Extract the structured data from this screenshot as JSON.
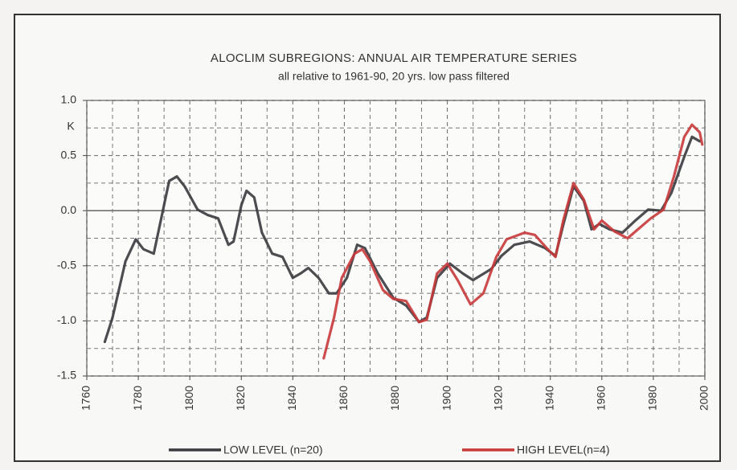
{
  "chart_data": {
    "type": "line",
    "title": "ALOCLIM SUBREGIONS: ANNUAL AIR TEMPERATURE SERIES",
    "subtitle": "all relative to 1961-90, 20 yrs. low pass filtered",
    "y_unit_label": "K",
    "xlim": [
      1760,
      2000
    ],
    "xticks": [
      1760,
      1780,
      1800,
      1820,
      1840,
      1860,
      1880,
      1900,
      1920,
      1940,
      1960,
      1980,
      2000
    ],
    "ylim": [
      -1.5,
      1.0
    ],
    "yticks": [
      {
        "value": -1.5,
        "label": "-1.5"
      },
      {
        "value": -1,
        "label": "-1.0"
      },
      {
        "value": -0.5,
        "label": "-0.5"
      },
      {
        "value": 0,
        "label": "0.0"
      },
      {
        "value": 0.5,
        "label": "0.5"
      },
      {
        "value": 1,
        "label": "1.0"
      }
    ],
    "grid": true,
    "series": [
      {
        "name": "LOW LEVEL (n=20)",
        "color": "#3a3a3e",
        "x": [
          1767,
          1770,
          1775,
          1779,
          1782,
          1786,
          1789,
          1792,
          1795,
          1798,
          1803,
          1807,
          1811,
          1815,
          1817,
          1820,
          1822,
          1825,
          1828,
          1832,
          1836,
          1840,
          1843,
          1846,
          1850,
          1854,
          1857,
          1861,
          1865,
          1868,
          1873,
          1879,
          1884,
          1889,
          1892,
          1896,
          1901,
          1906,
          1910,
          1917,
          1921,
          1926,
          1932,
          1938,
          1942,
          1945,
          1949,
          1953,
          1956,
          1959,
          1963,
          1968,
          1973,
          1978,
          1983,
          1987,
          1992,
          1995,
          1998
        ],
        "values": [
          -1.19,
          -0.97,
          -0.46,
          -0.26,
          -0.35,
          -0.39,
          -0.06,
          0.27,
          0.31,
          0.22,
          0.01,
          -0.04,
          -0.07,
          -0.31,
          -0.28,
          0.05,
          0.18,
          0.12,
          -0.2,
          -0.39,
          -0.42,
          -0.61,
          -0.57,
          -0.52,
          -0.61,
          -0.75,
          -0.75,
          -0.61,
          -0.31,
          -0.34,
          -0.57,
          -0.79,
          -0.86,
          -1.01,
          -0.97,
          -0.61,
          -0.48,
          -0.57,
          -0.63,
          -0.53,
          -0.41,
          -0.31,
          -0.28,
          -0.34,
          -0.41,
          -0.13,
          0.22,
          0.09,
          -0.17,
          -0.12,
          -0.17,
          -0.2,
          -0.09,
          0.01,
          0,
          0.16,
          0.49,
          0.67,
          0.63
        ]
      },
      {
        "name": "HIGH LEVEL(n=4)",
        "color": "#c8383a",
        "x": [
          1852,
          1856,
          1859,
          1864,
          1867,
          1870,
          1875,
          1879,
          1884,
          1889,
          1892,
          1896,
          1900,
          1904,
          1909,
          1914,
          1919,
          1923,
          1930,
          1934,
          1939,
          1942,
          1945,
          1949,
          1953,
          1957,
          1960,
          1965,
          1970,
          1974,
          1979,
          1984,
          1988,
          1992,
          1995,
          1998,
          1999
        ],
        "values": [
          -1.34,
          -0.97,
          -0.61,
          -0.39,
          -0.35,
          -0.46,
          -0.72,
          -0.8,
          -0.82,
          -1.01,
          -0.99,
          -0.57,
          -0.48,
          -0.63,
          -0.85,
          -0.75,
          -0.42,
          -0.26,
          -0.2,
          -0.22,
          -0.35,
          -0.42,
          -0.09,
          0.25,
          0.1,
          -0.17,
          -0.09,
          -0.19,
          -0.25,
          -0.17,
          -0.07,
          0.01,
          0.31,
          0.67,
          0.78,
          0.71,
          0.6
        ]
      }
    ]
  }
}
